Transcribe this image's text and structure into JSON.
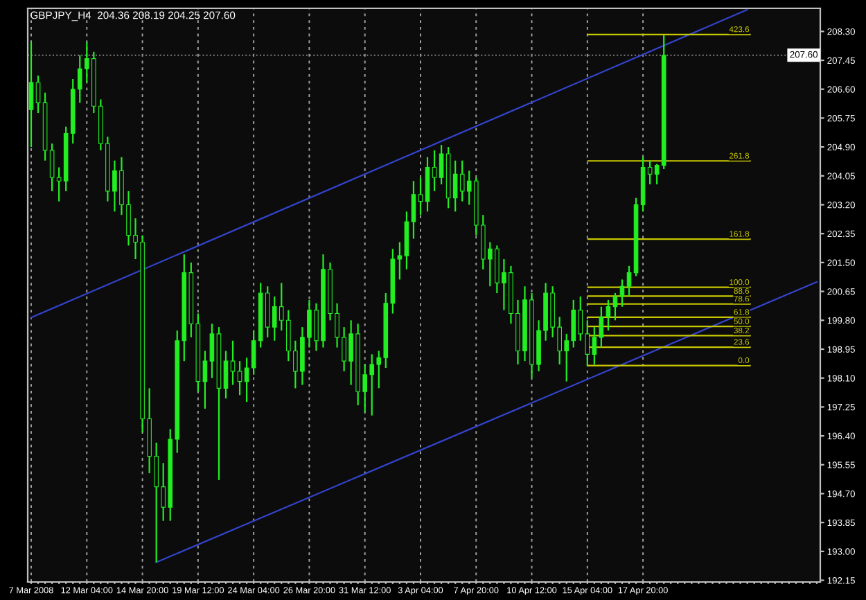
{
  "chart_data": {
    "type": "candlestick",
    "title": "GBPJPY_H4  204.36 208.19 204.25 207.60",
    "color": "#22ee22",
    "grid": "x",
    "legend": false,
    "categories": [
      "7 Mar 2008",
      null,
      null,
      null,
      null,
      null,
      null,
      null,
      "12 Mar 04:00",
      null,
      null,
      null,
      null,
      null,
      null,
      null,
      "14 Mar 20:00",
      null,
      null,
      null,
      null,
      null,
      null,
      null,
      "19 Mar 12:00",
      null,
      null,
      null,
      null,
      null,
      null,
      null,
      "24 Mar 04:00",
      null,
      null,
      null,
      null,
      null,
      null,
      null,
      "26 Mar 20:00",
      null,
      null,
      null,
      null,
      null,
      null,
      null,
      "31 Mar 12:00",
      null,
      null,
      null,
      null,
      null,
      null,
      null,
      "3 Apr 04:00",
      null,
      null,
      null,
      null,
      null,
      null,
      null,
      "7 Apr 20:00",
      null,
      null,
      null,
      null,
      null,
      null,
      null,
      "10 Apr 12:00",
      null,
      null,
      null,
      null,
      null,
      null,
      null,
      "15 Apr 04:00",
      null,
      null,
      null,
      null,
      null,
      null,
      null,
      "17 Apr 20:00",
      null,
      null,
      null,
      null,
      null,
      null,
      null,
      null,
      null,
      null,
      null,
      null,
      null,
      null,
      null,
      null,
      null,
      null,
      null,
      null,
      null,
      null,
      null,
      null,
      null
    ],
    "ohlc": [
      [
        206.0,
        207.98,
        204.9,
        206.8
      ],
      [
        206.8,
        207.0,
        205.9,
        206.2
      ],
      [
        206.2,
        206.5,
        204.5,
        204.8
      ],
      [
        204.8,
        205.0,
        203.6,
        204.0
      ],
      [
        204.0,
        204.3,
        203.3,
        203.9
      ],
      [
        203.9,
        205.5,
        203.6,
        205.3
      ],
      [
        205.3,
        206.9,
        205.0,
        206.6
      ],
      [
        206.6,
        207.6,
        206.2,
        207.2
      ],
      [
        207.2,
        207.98,
        206.8,
        207.5
      ],
      [
        207.5,
        207.7,
        205.9,
        206.1
      ],
      [
        206.1,
        206.3,
        204.8,
        205.0
      ],
      [
        205.0,
        205.2,
        203.3,
        203.6
      ],
      [
        203.6,
        204.5,
        203.0,
        204.2
      ],
      [
        204.2,
        204.6,
        202.9,
        203.2
      ],
      [
        203.2,
        203.6,
        202.0,
        202.3
      ],
      [
        202.3,
        202.8,
        201.6,
        202.1
      ],
      [
        202.1,
        202.3,
        196.5,
        196.9
      ],
      [
        196.9,
        197.8,
        195.3,
        195.8
      ],
      [
        195.8,
        196.2,
        192.68,
        194.9
      ],
      [
        194.9,
        195.6,
        193.9,
        194.3
      ],
      [
        194.3,
        196.6,
        193.9,
        196.3
      ],
      [
        196.3,
        199.5,
        195.9,
        199.2
      ],
      [
        199.2,
        201.74,
        198.6,
        201.2
      ],
      [
        201.2,
        201.5,
        199.3,
        199.7
      ],
      [
        199.7,
        200.0,
        197.7,
        198.0
      ],
      [
        198.0,
        198.9,
        197.2,
        198.6
      ],
      [
        198.6,
        199.7,
        198.1,
        199.4
      ],
      [
        199.4,
        199.6,
        195.1,
        197.8
      ],
      [
        197.8,
        198.9,
        197.5,
        198.6
      ],
      [
        198.6,
        199.2,
        197.9,
        198.3
      ],
      [
        198.3,
        198.6,
        197.6,
        198.0
      ],
      [
        198.0,
        198.7,
        197.4,
        198.4
      ],
      [
        198.4,
        199.5,
        198.2,
        199.2
      ],
      [
        199.2,
        200.9,
        199.0,
        200.6
      ],
      [
        200.6,
        200.8,
        199.3,
        199.6
      ],
      [
        199.6,
        200.5,
        199.2,
        200.2
      ],
      [
        200.2,
        200.9,
        199.5,
        199.8
      ],
      [
        199.8,
        200.1,
        198.6,
        198.9
      ],
      [
        198.9,
        199.2,
        197.8,
        198.3
      ],
      [
        198.3,
        199.6,
        197.9,
        199.3
      ],
      [
        199.3,
        200.4,
        199.0,
        200.1
      ],
      [
        200.1,
        200.3,
        198.9,
        199.2
      ],
      [
        199.2,
        201.74,
        199.0,
        201.3
      ],
      [
        201.3,
        201.5,
        199.8,
        200.0
      ],
      [
        200.0,
        200.3,
        199.0,
        199.3
      ],
      [
        199.3,
        199.6,
        198.3,
        198.6
      ],
      [
        198.6,
        199.8,
        197.9,
        199.4
      ],
      [
        199.4,
        199.7,
        197.3,
        197.7
      ],
      [
        197.7,
        198.5,
        197.1,
        198.2
      ],
      [
        198.2,
        198.8,
        197.0,
        198.5
      ],
      [
        198.5,
        198.9,
        197.8,
        198.7
      ],
      [
        198.7,
        200.6,
        198.4,
        200.3
      ],
      [
        200.3,
        201.9,
        200.0,
        201.6
      ],
      [
        201.6,
        202.1,
        201.0,
        201.7
      ],
      [
        201.7,
        203.0,
        201.3,
        202.7
      ],
      [
        202.7,
        203.9,
        202.2,
        203.5
      ],
      [
        203.5,
        204.0,
        202.9,
        203.3
      ],
      [
        203.3,
        204.6,
        203.0,
        204.3
      ],
      [
        204.3,
        204.8,
        203.6,
        204.0
      ],
      [
        204.0,
        204.96,
        203.8,
        204.7
      ],
      [
        204.7,
        204.9,
        203.1,
        203.4
      ],
      [
        203.4,
        204.5,
        203.0,
        204.1
      ],
      [
        204.1,
        204.5,
        203.3,
        203.6
      ],
      [
        203.6,
        204.2,
        203.2,
        203.9
      ],
      [
        203.9,
        204.0,
        202.3,
        202.6
      ],
      [
        202.6,
        202.9,
        201.3,
        201.6
      ],
      [
        201.6,
        202.1,
        200.8,
        201.9
      ],
      [
        201.9,
        202.0,
        200.6,
        200.9
      ],
      [
        200.9,
        201.6,
        200.1,
        201.2
      ],
      [
        201.2,
        201.4,
        199.7,
        200.0
      ],
      [
        200.0,
        200.4,
        198.5,
        198.9
      ],
      [
        198.9,
        200.8,
        198.6,
        200.4
      ],
      [
        200.4,
        200.6,
        198.11,
        198.5
      ],
      [
        198.5,
        199.8,
        198.3,
        199.5
      ],
      [
        199.5,
        200.9,
        199.2,
        200.6
      ],
      [
        200.6,
        200.8,
        199.3,
        199.6
      ],
      [
        199.6,
        199.9,
        198.5,
        198.9
      ],
      [
        198.9,
        199.4,
        198.0,
        199.2
      ],
      [
        199.2,
        200.4,
        199.0,
        200.1
      ],
      [
        200.1,
        200.5,
        199.2,
        199.4
      ],
      [
        199.4,
        199.8,
        198.47,
        198.8
      ],
      [
        198.8,
        199.6,
        198.5,
        199.3
      ],
      [
        199.3,
        200.2,
        199.0,
        199.9
      ],
      [
        199.9,
        200.4,
        199.5,
        200.2
      ],
      [
        200.2,
        200.6,
        199.8,
        200.5
      ],
      [
        200.5,
        201.0,
        200.2,
        200.8
      ],
      [
        200.8,
        201.4,
        200.5,
        201.2
      ],
      [
        201.2,
        203.4,
        201.1,
        203.2
      ],
      [
        203.2,
        204.6,
        203.0,
        204.3
      ],
      [
        204.3,
        204.5,
        203.8,
        204.1
      ],
      [
        204.1,
        204.4,
        203.8,
        204.36
      ],
      [
        204.36,
        208.19,
        204.25,
        207.6
      ],
      null,
      null,
      null,
      null,
      null,
      null,
      null,
      null,
      null,
      null,
      null,
      null,
      null,
      null,
      null,
      null,
      null,
      null,
      null,
      null,
      null,
      null
    ],
    "series": [
      {
        "type": "line",
        "color": "#3344cc",
        "values": [
          199.88,
          null,
          null,
          null,
          null,
          null,
          null,
          null,
          null,
          null,
          null,
          null,
          null,
          null,
          null,
          null,
          null,
          null,
          null,
          null,
          null,
          null,
          null,
          null,
          null,
          null,
          null,
          null,
          null,
          null,
          null,
          null,
          null,
          null,
          null,
          null,
          null,
          null,
          null,
          null,
          null,
          null,
          null,
          null,
          null,
          null,
          null,
          null,
          null,
          null,
          null,
          null,
          null,
          null,
          null,
          null,
          null,
          null,
          null,
          null,
          null,
          null,
          null,
          null,
          null,
          null,
          null,
          null,
          null,
          null,
          null,
          null,
          null,
          null,
          null,
          null,
          null,
          null,
          null,
          null,
          null,
          null,
          null,
          null,
          null,
          null,
          null,
          null,
          null,
          null,
          null,
          null,
          null,
          null,
          null,
          null,
          null,
          null,
          null,
          null,
          null,
          null,
          null,
          208.94,
          null,
          null,
          null,
          null,
          null,
          null,
          null,
          null,
          null,
          null
        ]
      },
      {
        "type": "line",
        "color": "#3344cc",
        "values": [
          null,
          null,
          null,
          null,
          null,
          null,
          null,
          null,
          null,
          null,
          null,
          null,
          null,
          null,
          null,
          null,
          null,
          null,
          192.68,
          null,
          null,
          null,
          null,
          null,
          null,
          null,
          null,
          null,
          null,
          null,
          null,
          null,
          null,
          null,
          null,
          null,
          null,
          null,
          null,
          null,
          null,
          null,
          null,
          null,
          null,
          null,
          null,
          null,
          null,
          null,
          null,
          null,
          null,
          null,
          null,
          null,
          null,
          null,
          null,
          null,
          null,
          null,
          null,
          null,
          null,
          null,
          null,
          null,
          null,
          null,
          null,
          null,
          null,
          null,
          null,
          null,
          null,
          null,
          null,
          null,
          null,
          null,
          null,
          null,
          null,
          null,
          null,
          null,
          null,
          null,
          null,
          null,
          null,
          null,
          null,
          null,
          null,
          null,
          null,
          null,
          null,
          null,
          null,
          null,
          null,
          null,
          null,
          null,
          null,
          null,
          null,
          null,
          null,
          200.93
        ]
      }
    ],
    "ylim": [
      192.1,
      208.98
    ],
    "yticks": [
      {
        "value": 192.15,
        "label": "192.15"
      },
      {
        "value": 193.0,
        "label": "193.00"
      },
      {
        "value": 193.85,
        "label": "193.85"
      },
      {
        "value": 194.7,
        "label": "194.70"
      },
      {
        "value": 195.55,
        "label": "195.55"
      },
      {
        "value": 196.4,
        "label": "196.40"
      },
      {
        "value": 197.25,
        "label": "197.25"
      },
      {
        "value": 198.1,
        "label": "198.10"
      },
      {
        "value": 198.95,
        "label": "198.95"
      },
      {
        "value": 199.8,
        "label": "199.80"
      },
      {
        "value": 200.65,
        "label": "200.65"
      },
      {
        "value": 201.5,
        "label": "201.50"
      },
      {
        "value": 202.35,
        "label": "202.35"
      },
      {
        "value": 203.2,
        "label": "203.20"
      },
      {
        "value": 204.05,
        "label": "204.05"
      },
      {
        "value": 204.9,
        "label": "204.90"
      },
      {
        "value": 205.75,
        "label": "205.75"
      },
      {
        "value": 206.6,
        "label": "206.60"
      },
      {
        "value": 207.45,
        "label": "207.45"
      },
      {
        "value": 208.3,
        "label": "208.30"
      }
    ],
    "ref_lines": [
      {
        "axis": "y",
        "value": 207.6,
        "label": "207.60",
        "color": "#808080",
        "line_style": "dotted"
      },
      {
        "axis": "y",
        "value": 198.47,
        "color": "#c8c800"
      },
      {
        "axis": "y",
        "value": 199.01,
        "color": "#c8c800"
      },
      {
        "axis": "y",
        "value": 199.35,
        "color": "#c8c800"
      },
      {
        "axis": "y",
        "value": 199.62,
        "color": "#c8c800"
      },
      {
        "axis": "y",
        "value": 199.89,
        "color": "#c8c800"
      },
      {
        "axis": "y",
        "value": 200.28,
        "color": "#c8c800"
      },
      {
        "axis": "y",
        "value": 200.51,
        "color": "#c8c800"
      },
      {
        "axis": "y",
        "value": 200.77,
        "color": "#c8c800"
      },
      {
        "axis": "y",
        "value": 202.19,
        "color": "#c8c800"
      },
      {
        "axis": "y",
        "value": 204.49,
        "color": "#c8c800"
      },
      {
        "axis": "y",
        "value": 208.21,
        "color": "#c8c800"
      }
    ],
    "annotations": [
      {
        "text": "0.0",
        "y": 198.47
      },
      {
        "text": "23.6",
        "y": 199.01
      },
      {
        "text": "38.2",
        "y": 199.35
      },
      {
        "text": "50.0",
        "y": 199.62
      },
      {
        "text": "61.8",
        "y": 199.89
      },
      {
        "text": "78.6",
        "y": 200.28
      },
      {
        "text": "88.6",
        "y": 200.51
      },
      {
        "text": "100.0",
        "y": 200.77
      },
      {
        "text": "161.8",
        "y": 202.19
      },
      {
        "text": "261.8",
        "y": 204.49
      },
      {
        "text": "423.6",
        "y": 208.21
      }
    ]
  }
}
